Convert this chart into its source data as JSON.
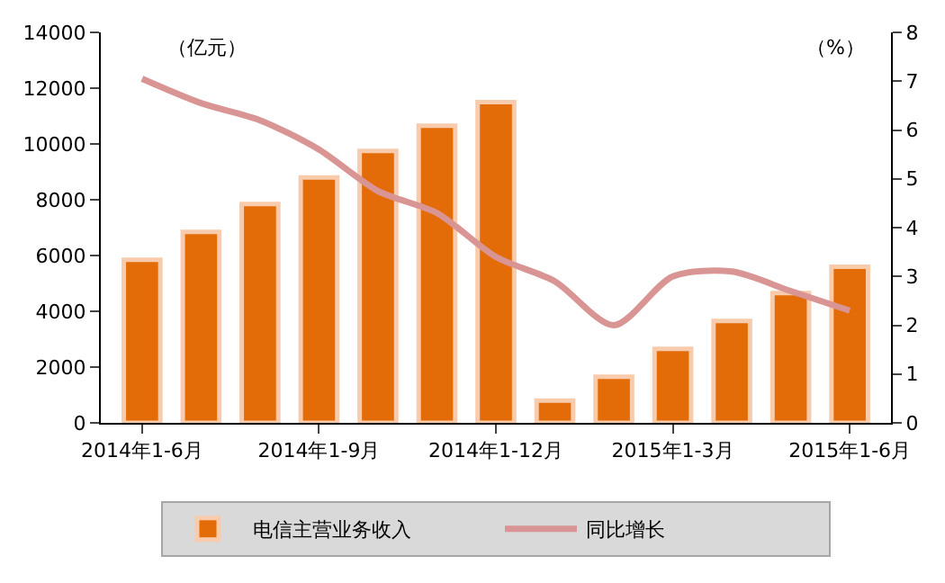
{
  "chart_data": {
    "type": "bar",
    "categories": [
      "2014年1-6月",
      null,
      null,
      "2014年1-9月",
      null,
      null,
      "2014年1-12月",
      null,
      null,
      "2015年1-3月",
      null,
      null,
      "2015年1-6月"
    ],
    "series": [
      {
        "name": "电信主营业务收入",
        "color": "#e36c09",
        "values": [
          5850,
          6850,
          7850,
          8800,
          9750,
          10650,
          11500,
          800,
          1650,
          2650,
          3650,
          4650,
          5600
        ]
      },
      {
        "name": "同比增长",
        "type": "line",
        "axis": "y2",
        "color": "#d99594",
        "marker": "none",
        "line_style": "solid",
        "values": [
          7.05,
          6.55,
          6.2,
          5.6,
          4.75,
          4.3,
          3.4,
          2.9,
          2.0,
          3.0,
          3.1,
          2.7,
          2.3
        ]
      }
    ],
    "ylim": [
      0,
      14000
    ],
    "yticks": [
      0,
      2000,
      4000,
      6000,
      8000,
      10000,
      12000,
      14000
    ],
    "y2lim": [
      0,
      8
    ],
    "y2ticks": [
      0,
      1,
      2,
      3,
      4,
      5,
      6,
      7,
      8
    ],
    "annotations": [
      "（亿元）",
      "（%）"
    ],
    "legend": "bottom"
  }
}
